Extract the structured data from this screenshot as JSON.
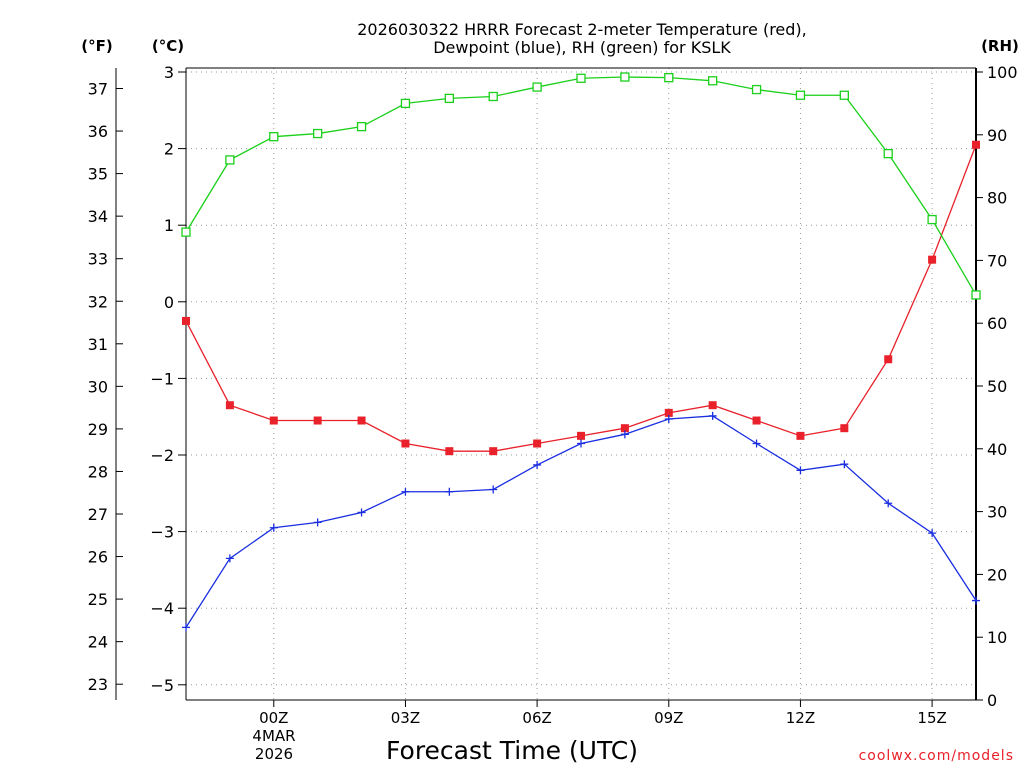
{
  "chart_data": {
    "type": "line",
    "title_line1": "2026030322 HRRR Forecast 2-meter Temperature (red),",
    "title_line2": "Dewpoint (blue), RH (green) for KSLK",
    "xlabel": "Forecast Time (UTC)",
    "ylabel_f": "(°F)",
    "ylabel_c": "(°C)",
    "ylabel_rh": "(RH)",
    "credit": "coolwx.com/models",
    "date_label": [
      "4MAR",
      "2026"
    ],
    "x_hours": [
      -2,
      -1,
      0,
      1,
      2,
      3,
      4,
      5,
      6,
      7,
      8,
      9,
      10,
      11,
      12,
      13,
      14,
      15,
      16
    ],
    "xlim": [
      -2,
      16
    ],
    "x_ticks": [
      {
        "hour": 0,
        "label": "00Z"
      },
      {
        "hour": 3,
        "label": "03Z"
      },
      {
        "hour": 6,
        "label": "06Z"
      },
      {
        "hour": 9,
        "label": "09Z"
      },
      {
        "hour": 12,
        "label": "12Z"
      },
      {
        "hour": 15,
        "label": "15Z"
      }
    ],
    "c_range": [
      -5.2,
      3.0
    ],
    "c_ticks": [
      "3",
      "2",
      "1",
      "0",
      "−1",
      "−2",
      "−3",
      "−4",
      "−5"
    ],
    "f_ticks": [
      "37",
      "36",
      "35",
      "34",
      "33",
      "32",
      "31",
      "30",
      "29",
      "28",
      "27",
      "26",
      "25",
      "24",
      "23"
    ],
    "rh_range": [
      0,
      100
    ],
    "rh_ticks": [
      "100",
      "90",
      "80",
      "70",
      "60",
      "50",
      "40",
      "30",
      "20",
      "10",
      "0"
    ],
    "series": [
      {
        "name": "Temperature",
        "color": "#e8212a",
        "marker": "filled-square",
        "values_c": [
          -0.25,
          -1.35,
          -1.55,
          -1.55,
          -1.55,
          -1.85,
          -1.95,
          -1.95,
          -1.85,
          -1.75,
          -1.65,
          -1.45,
          -1.35,
          -1.55,
          -1.75,
          -1.65,
          -0.75,
          0.55,
          2.05
        ]
      },
      {
        "name": "Dewpoint",
        "color": "#1a2ee0",
        "marker": "plus",
        "values_c": [
          -4.25,
          -3.35,
          -2.95,
          -2.88,
          -2.75,
          -2.48,
          -2.48,
          -2.45,
          -2.13,
          -1.85,
          -1.73,
          -1.53,
          -1.49,
          -1.85,
          -2.2,
          -2.12,
          -2.63,
          -3.02,
          -3.9
        ]
      },
      {
        "name": "RH",
        "color": "#1ad01a",
        "marker": "open-square",
        "values_rh": [
          74.5,
          86,
          89.7,
          90.2,
          91.3,
          95,
          95.8,
          96.1,
          97.6,
          99,
          99.2,
          99.1,
          98.6,
          97.2,
          96.3,
          96.3,
          87,
          76.5,
          64.5
        ]
      }
    ]
  }
}
